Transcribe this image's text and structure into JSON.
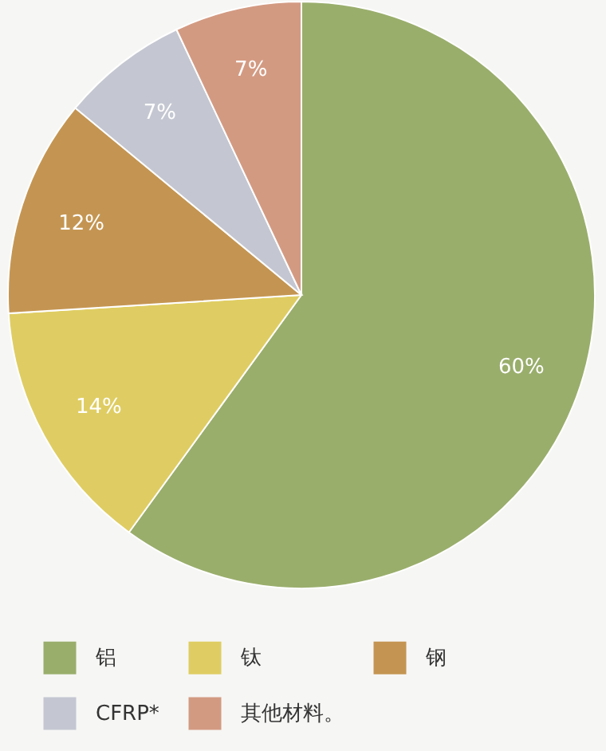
{
  "chart_data": {
    "type": "pie",
    "categories": [
      "铝",
      "钛",
      "钢",
      "CFRP*",
      "其他材料。"
    ],
    "values": [
      60,
      14,
      12,
      7,
      7
    ],
    "colors": [
      "#9aae6c",
      "#dfcd63",
      "#c49552",
      "#c4c7d1",
      "#d39a82"
    ],
    "value_labels": [
      "60%",
      "14%",
      "12%",
      "7%",
      "7%"
    ],
    "legend": "bottom"
  }
}
